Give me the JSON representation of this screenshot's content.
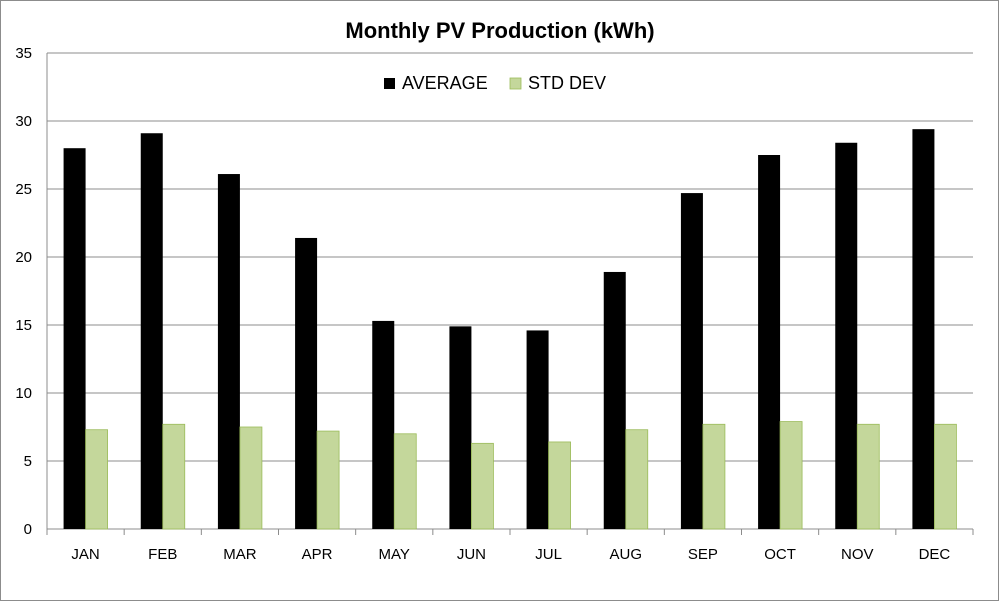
{
  "chart_data": {
    "type": "bar",
    "title": "Monthly PV Production (kWh)",
    "xlabel": "",
    "ylabel": "",
    "ylim": [
      0,
      35
    ],
    "ytick_step": 5,
    "grid": true,
    "legend_position": "top-center",
    "categories": [
      "JAN",
      "FEB",
      "MAR",
      "APR",
      "MAY",
      "JUN",
      "JUL",
      "AUG",
      "SEP",
      "OCT",
      "NOV",
      "DEC"
    ],
    "series": [
      {
        "name": "AVERAGE",
        "color": "#000000",
        "values": [
          28.0,
          29.1,
          26.1,
          21.4,
          15.3,
          14.9,
          14.6,
          18.9,
          24.7,
          27.5,
          28.4,
          29.4
        ]
      },
      {
        "name": "STD DEV",
        "color": "#c4d79b",
        "values": [
          7.3,
          7.7,
          7.5,
          7.2,
          7.0,
          6.3,
          6.4,
          7.3,
          7.7,
          7.9,
          7.7,
          7.7
        ]
      }
    ]
  },
  "colors": {
    "grid": "#8c8c8c",
    "bar_outline": "#9bbb59"
  }
}
